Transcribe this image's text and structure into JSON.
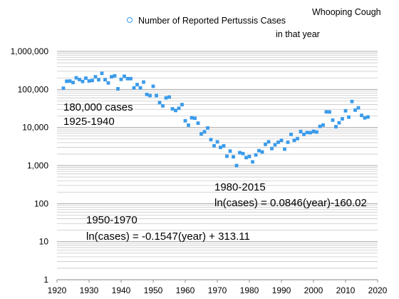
{
  "chart_data": {
    "type": "scatter",
    "title": "Whooping Cough",
    "legend": {
      "label_line1": "Number of Reported Pertussis Cases",
      "label_line2": "in that year",
      "placement": "top"
    },
    "xlabel": "",
    "ylabel": "",
    "xlim": [
      1920,
      2020
    ],
    "ylim": [
      1,
      1000000
    ],
    "yscale": "log",
    "grid": {
      "y_major": true,
      "y_minor": true,
      "x": false
    },
    "colors": {
      "point": "#3a9bea",
      "grid": "#c8c8c8"
    },
    "x_ticks": [
      "1920",
      "1930",
      "1940",
      "1950",
      "1960",
      "1970",
      "1980",
      "1990",
      "2000",
      "2010",
      "2020"
    ],
    "y_ticks": [
      "1",
      "10",
      "100",
      "1,000",
      "10,000",
      "100,000",
      "1,000,000"
    ],
    "x": [
      1922,
      1923,
      1924,
      1925,
      1926,
      1927,
      1928,
      1929,
      1930,
      1931,
      1932,
      1933,
      1934,
      1935,
      1936,
      1937,
      1938,
      1939,
      1940,
      1941,
      1942,
      1943,
      1944,
      1945,
      1946,
      1947,
      1948,
      1949,
      1950,
      1951,
      1952,
      1953,
      1954,
      1955,
      1956,
      1957,
      1958,
      1959,
      1960,
      1961,
      1962,
      1963,
      1964,
      1965,
      1966,
      1967,
      1968,
      1969,
      1970,
      1971,
      1972,
      1973,
      1974,
      1975,
      1976,
      1977,
      1978,
      1979,
      1980,
      1981,
      1982,
      1983,
      1984,
      1985,
      1986,
      1987,
      1988,
      1989,
      1990,
      1991,
      1992,
      1993,
      1994,
      1995,
      1996,
      1997,
      1998,
      1999,
      2000,
      2001,
      2002,
      2003,
      2004,
      2005,
      2006,
      2007,
      2008,
      2009,
      2010,
      2011,
      2012,
      2013,
      2014,
      2015,
      2016,
      2017
    ],
    "y": [
      107500,
      164000,
      166000,
      152000,
      202000,
      182000,
      162000,
      198000,
      167000,
      172000,
      215000,
      180000,
      265000,
      180000,
      148000,
      215000,
      228000,
      104000,
      184000,
      222000,
      192000,
      192000,
      110000,
      134000,
      110000,
      156000,
      74000,
      69000,
      121000,
      69000,
      45000,
      37000,
      60000,
      63000,
      31000,
      28000,
      32000,
      40000,
      15000,
      11500,
      18000,
      17500,
      13000,
      6800,
      7700,
      9700,
      4800,
      3300,
      4200,
      3000,
      3300,
      1760,
      2400,
      1700,
      1000,
      2180,
      2060,
      1620,
      1730,
      1250,
      1900,
      2460,
      2280,
      3600,
      4200,
      2800,
      3500,
      4100,
      4600,
      2700,
      4100,
      6600,
      4600,
      5100,
      7800,
      6600,
      7400,
      7300,
      7900,
      7600,
      10700,
      11600,
      25800,
      25600,
      15600,
      10500,
      13300,
      16900,
      27500,
      18700,
      48300,
      28600,
      32900,
      20800,
      17900,
      18900
    ],
    "annotations": [
      {
        "line1": "180,000 cases",
        "line2": "1925-1940"
      },
      {
        "line1": "1980-2015",
        "line2": "ln(cases) = 0.0846(year)-160.02"
      },
      {
        "line1": "1950-1970",
        "line2": "ln(cases) = -0.1547(year) + 313.11"
      }
    ]
  }
}
